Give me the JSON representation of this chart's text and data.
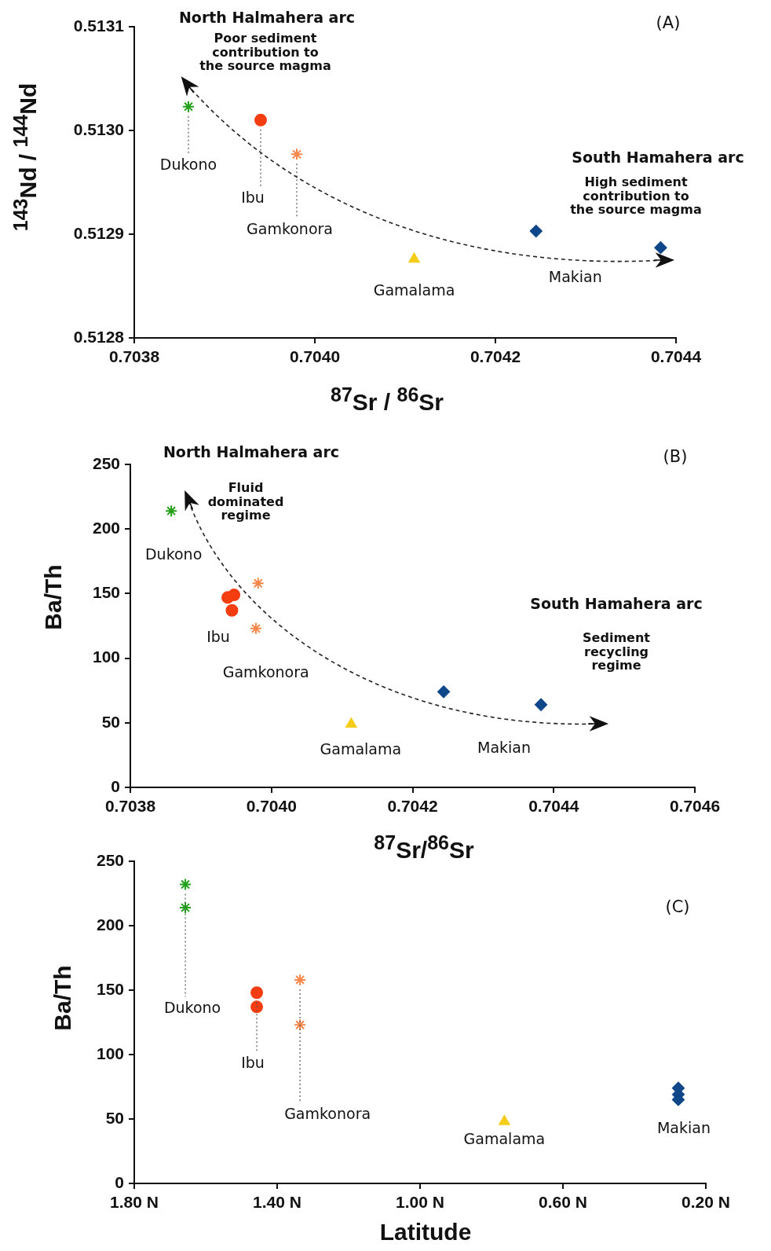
{
  "chart_data": [
    {
      "type": "scatter",
      "xlabel": "$^{87}$Sr / $^{86}$Sr",
      "ylabel": "$^{143}$Nd / $^{144}$Nd",
      "annotations": [
        "North Halmahera arc",
        "Poor sediment\ncontribution to\nthe source magma",
        "South Hamahera arc",
        "High sediment\ncontribution to\nthe source magma",
        "(A)"
      ],
      "xlim": [
        0.7038,
        0.7044
      ],
      "xticks": [
        0.7038,
        {
          "value": 0.704,
          "label": "0.7040"
        },
        0.7042,
        0.7044
      ],
      "ylim": [
        0.5128,
        0.5131
      ],
      "yticks": [
        0.5128,
        0.5129,
        {
          "value": 0.513,
          "label": "0.5130"
        },
        0.5131
      ],
      "series": [
        {
          "name": "Dukono",
          "color": "#22a01a",
          "marker": "cross",
          "x": [
            0.70386
          ],
          "values": [
            0.513023
          ]
        },
        {
          "name": "Ibu",
          "color": "#f53d12",
          "marker": "circle",
          "x": [
            0.70394
          ],
          "values": [
            0.51301
          ]
        },
        {
          "name": "Gamkonora",
          "color": "#f5874a",
          "marker": "cross",
          "x": [
            0.70398
          ],
          "values": [
            0.512977
          ]
        },
        {
          "name": "Gamalama",
          "color": "#f5cc1a",
          "marker": "triangle",
          "x": [
            0.70411
          ],
          "values": [
            0.512876
          ]
        },
        {
          "name": "Makian",
          "color": "#10478a",
          "marker": "diamond",
          "x": [
            0.704245,
            0.704383
          ],
          "values": [
            0.512903,
            0.512887
          ]
        }
      ]
    },
    {
      "type": "scatter",
      "xlabel": "$^{87}$Sr/$^{86}$Sr",
      "ylabel": "Ba/Th",
      "annotations": [
        "North Halmahera arc",
        "Fluid\ndominated\nregime",
        "South Hamahera arc",
        "Sediment\nrecycling\nregime",
        "(B)"
      ],
      "xlim": [
        0.7038,
        0.7046
      ],
      "xticks": [
        0.7038,
        {
          "value": 0.704,
          "label": "0.7040"
        },
        0.7042,
        0.7044,
        0.7046
      ],
      "ylim": [
        0,
        250
      ],
      "yticks": [
        0,
        50,
        100,
        150,
        200,
        250
      ],
      "series": [
        {
          "name": "Dukono",
          "color": "#22a01a",
          "marker": "cross",
          "x": [
            0.703858
          ],
          "values": [
            214
          ]
        },
        {
          "name": "Ibu",
          "color": "#f53d12",
          "marker": "circle",
          "x": [
            0.703938,
            0.703947,
            0.703944
          ],
          "values": [
            147,
            149,
            137
          ]
        },
        {
          "name": "Gamkonora",
          "color": "#f5874a",
          "marker": "cross",
          "x": [
            0.703981,
            0.703978
          ],
          "values": [
            158,
            123
          ]
        },
        {
          "name": "Gamalama",
          "color": "#f5cc1a",
          "marker": "triangle",
          "x": [
            0.704113
          ],
          "values": [
            49
          ]
        },
        {
          "name": "Makian",
          "color": "#10478a",
          "marker": "diamond",
          "x": [
            0.704244,
            0.704382
          ],
          "values": [
            74,
            64
          ]
        }
      ]
    },
    {
      "type": "scatter",
      "xlabel": "Latitude",
      "ylabel": "Ba/Th",
      "annotations": [
        "(C)"
      ],
      "xlim": [
        1.8,
        0.2
      ],
      "xticks": [
        {
          "value": 1.8,
          "label": "1.80 N"
        },
        {
          "value": 1.4,
          "label": "1.40 N"
        },
        {
          "value": 1.0,
          "label": "1.00 N"
        },
        {
          "value": 0.6,
          "label": "0.60 N"
        },
        {
          "value": 0.2,
          "label": "0.20 N"
        }
      ],
      "ylim": [
        0,
        250
      ],
      "yticks": [
        0,
        50,
        100,
        150,
        200,
        250
      ],
      "series": [
        {
          "name": "Dukono",
          "color": "#22a01a",
          "marker": "cross",
          "x": [
            1.657,
            1.657
          ],
          "values": [
            232,
            214
          ]
        },
        {
          "name": "Ibu",
          "color": "#f53d12",
          "marker": "circle",
          "x": [
            1.457,
            1.457
          ],
          "values": [
            148,
            137
          ]
        },
        {
          "name": "Gamkonora",
          "color": "#f5874a",
          "marker": "cross",
          "x": [
            1.336,
            1.336
          ],
          "values": [
            158,
            123
          ]
        },
        {
          "name": "Gamalama",
          "color": "#f5cc1a",
          "marker": "triangle",
          "x": [
            0.764
          ],
          "values": [
            48
          ]
        },
        {
          "name": "Makian",
          "color": "#10478a",
          "marker": "diamond",
          "x": [
            0.277,
            0.277,
            0.277
          ],
          "values": [
            74,
            69,
            65
          ]
        }
      ]
    }
  ]
}
